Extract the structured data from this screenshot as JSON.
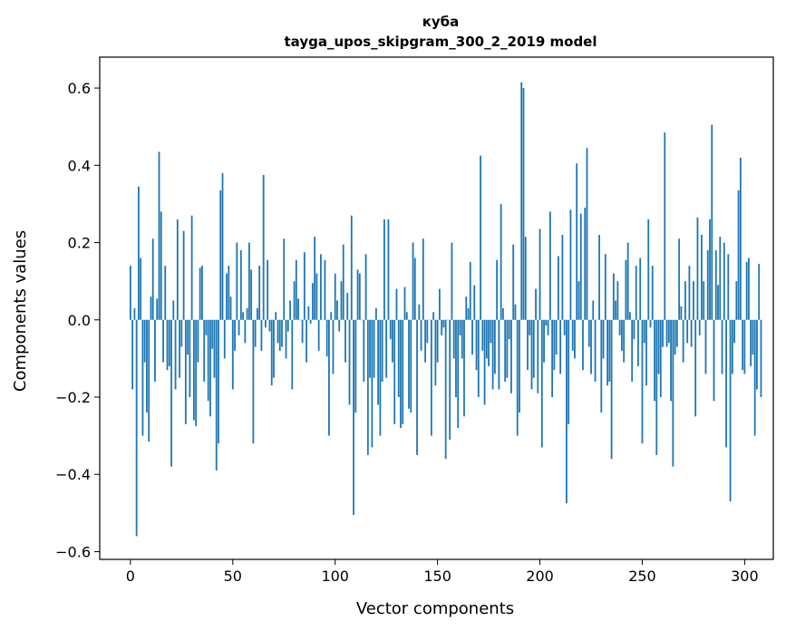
{
  "chart_data": {
    "type": "bar",
    "title": "куба",
    "subtitle": "tayga_upos_skipgram_300_2_2019 model",
    "xlabel": "Vector components",
    "ylabel": "Components values",
    "xlim": [
      -15,
      314
    ],
    "ylim": [
      -0.62,
      0.68
    ],
    "xticks": [
      0,
      50,
      100,
      150,
      200,
      250,
      300
    ],
    "yticks": [
      -0.6,
      -0.4,
      -0.2,
      0.0,
      0.2,
      0.4,
      0.6
    ],
    "xtick_labels": [
      "0",
      "50",
      "100",
      "150",
      "200",
      "250",
      "300"
    ],
    "ytick_labels": [
      "−0.6",
      "−0.4",
      "−0.2",
      "0.0",
      "0.2",
      "0.4",
      "0.6"
    ],
    "color": "#1f77b4",
    "grid": false,
    "values": [
      0.14,
      -0.18,
      0.03,
      -0.56,
      0.345,
      0.16,
      -0.3,
      -0.11,
      -0.24,
      -0.315,
      0.06,
      0.21,
      -0.16,
      0.055,
      0.435,
      0.28,
      -0.11,
      0.14,
      -0.13,
      -0.12,
      -0.38,
      0.05,
      -0.18,
      0.26,
      -0.15,
      -0.07,
      0.23,
      -0.27,
      -0.09,
      -0.2,
      0.27,
      -0.26,
      -0.275,
      -0.11,
      0.135,
      0.14,
      -0.16,
      -0.04,
      -0.21,
      -0.25,
      -0.075,
      -0.15,
      -0.39,
      -0.32,
      0.335,
      0.38,
      -0.1,
      0.12,
      0.14,
      0.06,
      -0.18,
      -0.08,
      0.2,
      -0.04,
      0.18,
      0.02,
      -0.06,
      0.03,
      0.2,
      0.13,
      -0.32,
      -0.07,
      0.03,
      0.14,
      -0.08,
      0.375,
      -0.02,
      0.155,
      -0.03,
      -0.17,
      -0.15,
      0.02,
      -0.06,
      -0.08,
      -0.07,
      0.21,
      -0.1,
      -0.03,
      0.05,
      -0.18,
      0.1,
      0.155,
      0.055,
      0.0,
      -0.06,
      0.175,
      -0.11,
      0.035,
      -0.01,
      0.095,
      0.215,
      0.12,
      -0.08,
      0.17,
      0.0,
      0.155,
      -0.095,
      -0.3,
      0.02,
      -0.14,
      0.12,
      0.05,
      -0.03,
      0.1,
      0.195,
      -0.11,
      0.07,
      -0.22,
      0.27,
      -0.505,
      -0.24,
      0.13,
      0.12,
      0.0,
      -0.16,
      0.17,
      -0.35,
      -0.15,
      -0.33,
      -0.15,
      0.03,
      -0.22,
      -0.3,
      -0.16,
      0.26,
      -0.15,
      0.26,
      -0.05,
      -0.11,
      -0.27,
      0.08,
      -0.2,
      -0.28,
      -0.27,
      0.085,
      0.02,
      -0.23,
      -0.24,
      0.2,
      0.16,
      -0.35,
      0.04,
      -0.08,
      0.21,
      -0.11,
      -0.06,
      0.0,
      -0.3,
      0.02,
      -0.17,
      -0.11,
      0.08,
      -0.04,
      -0.02,
      -0.36,
      0.0,
      -0.31,
      0.2,
      -0.1,
      -0.2,
      -0.28,
      -0.04,
      -0.1,
      -0.25,
      0.06,
      0.03,
      0.15,
      -0.09,
      0.09,
      -0.13,
      -0.2,
      0.425,
      -0.08,
      -0.22,
      -0.1,
      -0.12,
      -0.06,
      -0.18,
      -0.14,
      0.155,
      -0.18,
      0.3,
      0.03,
      -0.16,
      -0.15,
      -0.05,
      -0.19,
      0.195,
      0.04,
      -0.3,
      -0.24,
      0.615,
      0.6,
      0.215,
      -0.13,
      -0.04,
      -0.18,
      -0.15,
      0.08,
      -0.19,
      0.235,
      -0.33,
      -0.11,
      -0.015,
      -0.04,
      0.28,
      -0.2,
      -0.13,
      -0.09,
      0.165,
      -0.14,
      0.22,
      -0.04,
      -0.475,
      -0.27,
      0.285,
      -0.08,
      -0.1,
      0.405,
      0.1,
      0.275,
      -0.13,
      0.29,
      0.445,
      -0.07,
      -0.14,
      0.05,
      -0.16,
      0.0,
      0.22,
      -0.24,
      -0.1,
      0.17,
      -0.17,
      -0.16,
      -0.36,
      0.12,
      0.05,
      0.1,
      -0.04,
      -0.08,
      -0.11,
      0.155,
      0.2,
      0.02,
      -0.16,
      -0.05,
      0.14,
      -0.12,
      0.16,
      -0.32,
      -0.06,
      -0.17,
      0.26,
      -0.02,
      0.14,
      -0.21,
      -0.35,
      -0.14,
      -0.2,
      -0.07,
      0.485,
      -0.07,
      -0.06,
      -0.21,
      -0.38,
      -0.09,
      -0.07,
      0.21,
      0.035,
      -0.11,
      0.1,
      -0.06,
      0.14,
      -0.07,
      0.1,
      -0.25,
      0.265,
      -0.04,
      0.22,
      0.1,
      -0.14,
      0.18,
      0.26,
      0.505,
      -0.21,
      0.18,
      0.09,
      0.215,
      -0.14,
      0.2,
      -0.33,
      0.17,
      -0.47,
      -0.14,
      -0.06,
      0.1,
      0.335,
      0.42,
      -0.13,
      -0.14,
      0.15,
      0.16,
      -0.12,
      -0.09,
      -0.3,
      -0.18,
      0.145,
      -0.2
    ]
  }
}
